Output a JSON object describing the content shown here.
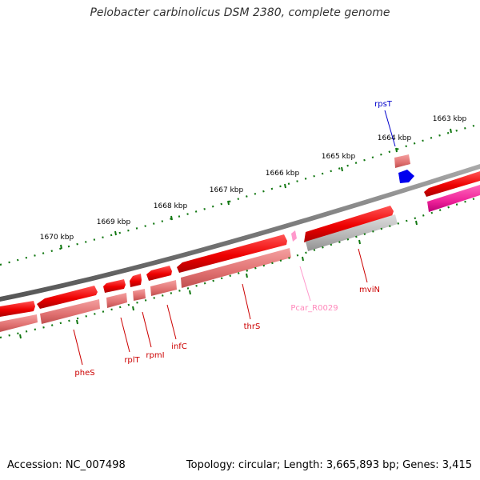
{
  "title": "Pelobacter carbinolicus DSM 2380, complete genome",
  "footer": {
    "accession": "Accession: NC_007498",
    "summary": "Topology: circular; Length: 3,665,893 bp; Genes: 3,415"
  },
  "ruler": {
    "labels": [
      "1670 kbp",
      "1669 kbp",
      "1668 kbp",
      "1667 kbp",
      "1666 kbp",
      "1665 kbp",
      "1664 kbp",
      "1663 kbp"
    ]
  },
  "genes": [
    {
      "name": "pheS",
      "color": "#cc0000"
    },
    {
      "name": "rplT",
      "color": "#cc0000"
    },
    {
      "name": "rpmI",
      "color": "#cc0000"
    },
    {
      "name": "infC",
      "color": "#cc0000"
    },
    {
      "name": "thrS",
      "color": "#cc0000"
    },
    {
      "name": "Pcar_R0029",
      "color": "#ff88bb"
    },
    {
      "name": "mviN",
      "color": "#cc0000"
    },
    {
      "name": "rpsT",
      "color": "#0000cc"
    }
  ],
  "colors": {
    "backbone": "#777777",
    "ruler_dots": "#117711",
    "cds": "#ee0000",
    "cds_light": "#e87878",
    "grey_feature": "#b8b8b8",
    "magenta_feature": "#ee2299",
    "trna": "#ff99cc",
    "blue_feature": "#0000ee"
  }
}
